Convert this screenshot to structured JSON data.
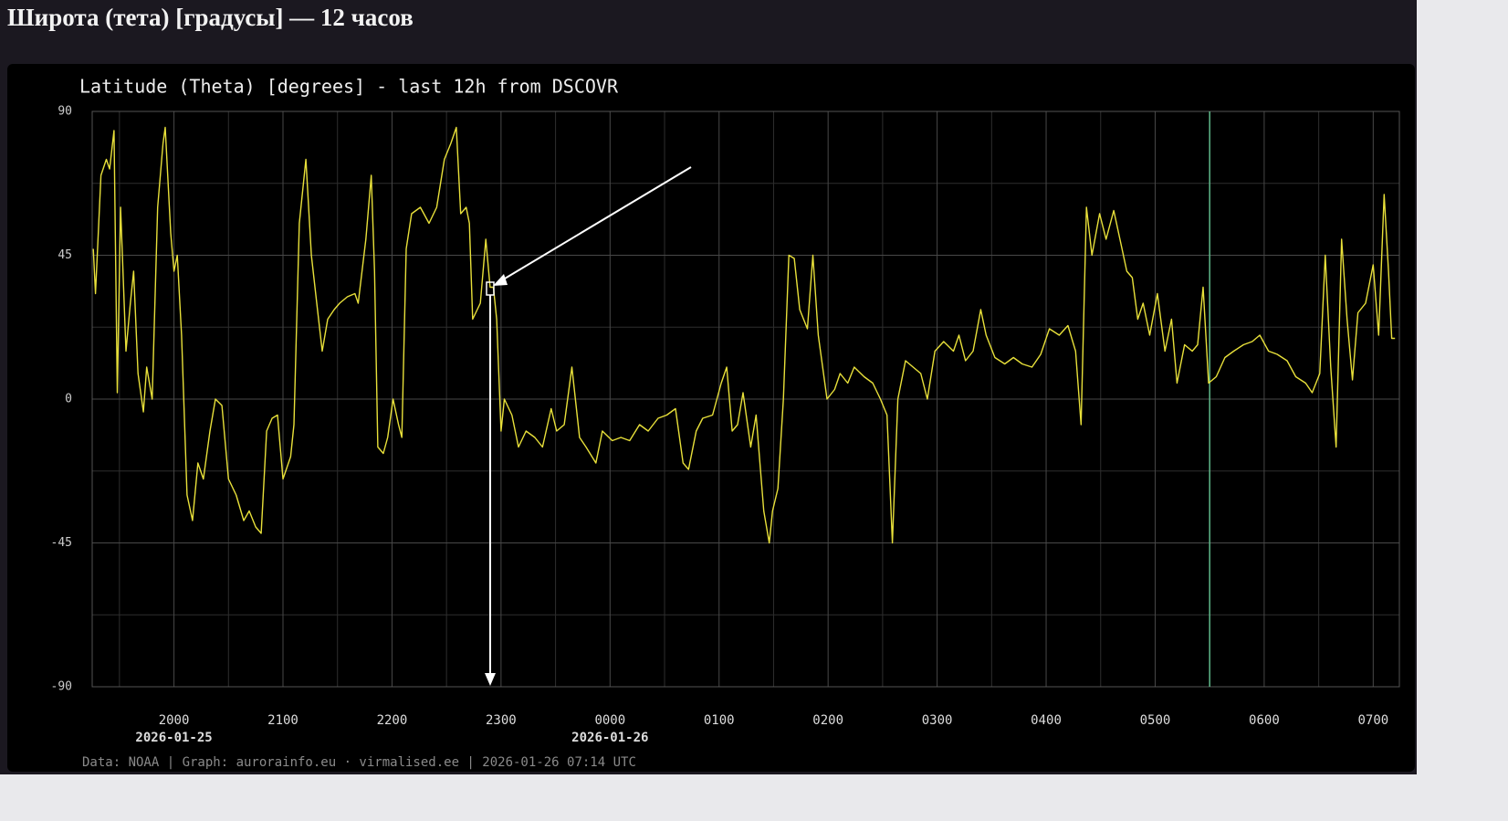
{
  "header": {
    "title": "Широта (тета) [градусы] — 12 часов"
  },
  "chart_data": {
    "type": "line",
    "title": "Latitude (Theta) [degrees] - last 12h from DSCOVR",
    "footer": "Data: NOAA | Graph: aurorainfo.eu · virmalised.ee | 2026-01-26 07:14 UTC",
    "xlim": [
      19.25,
      31.24
    ],
    "ylim": [
      -90,
      90
    ],
    "yticks": [
      90,
      45,
      0,
      -45,
      -90
    ],
    "minor_yticks": [
      67.5,
      22.5,
      -22.5,
      -67.5
    ],
    "xticks": [
      {
        "value": 20,
        "label": "2000"
      },
      {
        "value": 21,
        "label": "2100"
      },
      {
        "value": 22,
        "label": "2200"
      },
      {
        "value": 23,
        "label": "2300"
      },
      {
        "value": 24,
        "label": "0000"
      },
      {
        "value": 25,
        "label": "0100"
      },
      {
        "value": 26,
        "label": "0200"
      },
      {
        "value": 27,
        "label": "0300"
      },
      {
        "value": 28,
        "label": "0400"
      },
      {
        "value": 29,
        "label": "0500"
      },
      {
        "value": 30,
        "label": "0600"
      },
      {
        "value": 31,
        "label": "0700"
      }
    ],
    "minor_xticks": [
      19.5,
      20.5,
      21.5,
      22.5,
      23.5,
      24.5,
      25.5,
      26.5,
      27.5,
      28.5,
      29.5,
      30.5
    ],
    "date_labels": [
      {
        "value": 20,
        "label": "2026-01-25"
      },
      {
        "value": 24,
        "label": "2026-01-26"
      }
    ],
    "grid": true,
    "vline": {
      "x": 29.5,
      "color": "#5fb98a"
    },
    "x": [
      19.26,
      19.28,
      19.33,
      19.38,
      19.41,
      19.45,
      19.48,
      19.51,
      19.56,
      19.6,
      19.63,
      19.67,
      19.72,
      19.75,
      19.8,
      19.85,
      19.9,
      19.92,
      19.97,
      20.0,
      20.03,
      20.07,
      20.12,
      20.17,
      20.22,
      20.27,
      20.33,
      20.38,
      20.44,
      20.5,
      20.57,
      20.64,
      20.69,
      20.75,
      20.8,
      20.85,
      20.9,
      20.95,
      21.0,
      21.07,
      21.1,
      21.15,
      21.21,
      21.26,
      21.31,
      21.36,
      21.41,
      21.47,
      21.52,
      21.59,
      21.66,
      21.69,
      21.76,
      21.81,
      21.84,
      21.87,
      21.92,
      21.96,
      22.01,
      22.06,
      22.09,
      22.13,
      22.18,
      22.26,
      22.34,
      22.41,
      22.48,
      22.54,
      22.59,
      22.63,
      22.68,
      22.71,
      22.74,
      22.81,
      22.86,
      22.9,
      22.93,
      22.96,
      23.0,
      23.03,
      23.1,
      23.16,
      23.23,
      23.31,
      23.38,
      23.46,
      23.51,
      23.58,
      23.65,
      23.72,
      23.78,
      23.87,
      23.93,
      24.02,
      24.1,
      24.18,
      24.27,
      24.35,
      24.44,
      24.52,
      24.6,
      24.67,
      24.72,
      24.79,
      24.85,
      24.94,
      25.02,
      25.07,
      25.12,
      25.17,
      25.22,
      25.29,
      25.34,
      25.41,
      25.46,
      25.49,
      25.54,
      25.59,
      25.64,
      25.69,
      25.74,
      25.81,
      25.86,
      25.91,
      25.99,
      26.06,
      26.11,
      26.18,
      26.24,
      26.33,
      26.41,
      26.48,
      26.54,
      26.59,
      26.64,
      26.71,
      26.78,
      26.85,
      26.91,
      26.98,
      27.06,
      27.15,
      27.2,
      27.26,
      27.33,
      27.4,
      27.45,
      27.53,
      27.62,
      27.7,
      27.78,
      27.87,
      27.95,
      28.03,
      28.12,
      28.2,
      28.27,
      28.32,
      28.37,
      28.42,
      28.49,
      28.55,
      28.62,
      28.69,
      28.74,
      28.79,
      28.84,
      28.89,
      28.95,
      29.02,
      29.09,
      29.15,
      29.2,
      29.27,
      29.34,
      29.39,
      29.44,
      29.49,
      29.56,
      29.64,
      29.72,
      29.81,
      29.89,
      29.96,
      30.04,
      30.12,
      30.21,
      30.29,
      30.38,
      30.44,
      30.51,
      30.56,
      30.61,
      30.66,
      30.71,
      30.76,
      30.81,
      30.86,
      30.93,
      31.0,
      31.05,
      31.1,
      31.14,
      31.17,
      31.2
    ],
    "series": [
      {
        "name": "Theta",
        "color": "#e8e03a",
        "values": [
          47,
          33,
          70,
          75,
          72,
          84,
          2,
          60,
          15,
          30,
          40,
          8,
          -4,
          10,
          0,
          60,
          80,
          85,
          52,
          40,
          45,
          20,
          -30,
          -38,
          -20,
          -25,
          -10,
          0,
          -2,
          -25,
          -30,
          -38,
          -35,
          -40,
          -42,
          -10,
          -6,
          -5,
          -25,
          -18,
          -8,
          55,
          75,
          45,
          30,
          15,
          25,
          28,
          30,
          32,
          33,
          30,
          50,
          70,
          40,
          -15,
          -17,
          -12,
          0,
          -8,
          -12,
          47,
          58,
          60,
          55,
          60,
          75,
          80,
          85,
          58,
          60,
          55,
          25,
          30,
          50,
          35,
          35,
          25,
          -10,
          0,
          -5,
          -15,
          -10,
          -12,
          -15,
          -3,
          -10,
          -8,
          10,
          -12,
          -15,
          -20,
          -10,
          -13,
          -12,
          -13,
          -8,
          -10,
          -6,
          -5,
          -3,
          -20,
          -22,
          -10,
          -6,
          -5,
          5,
          10,
          -10,
          -8,
          2,
          -15,
          -5,
          -35,
          -45,
          -35,
          -28,
          0,
          45,
          44,
          28,
          22,
          45,
          20,
          0,
          3,
          8,
          5,
          10,
          7,
          5,
          0,
          -5,
          -45,
          0,
          12,
          10,
          8,
          0,
          15,
          18,
          15,
          20,
          12,
          15,
          28,
          20,
          13,
          11,
          13,
          11,
          10,
          14,
          22,
          20,
          23,
          15,
          -8,
          60,
          45,
          58,
          50,
          59,
          48,
          40,
          38,
          25,
          30,
          20,
          33,
          15,
          25,
          5,
          17,
          15,
          17,
          35,
          5,
          7,
          13,
          15,
          17,
          18,
          20,
          15,
          14,
          12,
          7,
          5,
          2,
          8,
          45,
          10,
          -15,
          50,
          25,
          6,
          27,
          30,
          42,
          20,
          64,
          40,
          19,
          19
        ]
      }
    ]
  }
}
